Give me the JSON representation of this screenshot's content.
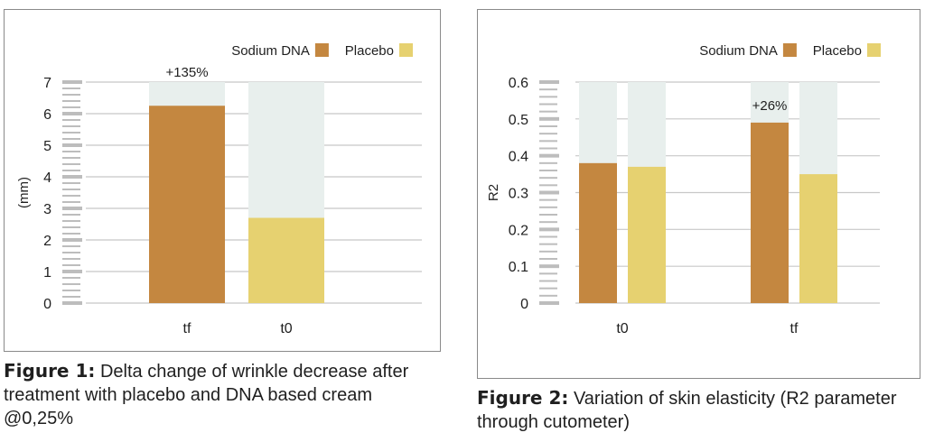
{
  "chart_data": [
    {
      "type": "bar",
      "categories": [
        "tf",
        "t0"
      ],
      "series": [
        {
          "name": "Sodium DNA",
          "values": [
            6.25,
            null
          ]
        },
        {
          "name": "Placebo",
          "values": [
            null,
            2.7
          ]
        }
      ],
      "ylabel": "(mm)",
      "ylim": [
        0,
        7
      ],
      "yticks": [
        "0",
        "1",
        "2",
        "3",
        "4",
        "5",
        "6",
        "7"
      ],
      "annotations": [
        {
          "text": "+135%",
          "category": "tf",
          "series": "Sodium DNA"
        }
      ],
      "legend": "top-right",
      "grid": true
    },
    {
      "type": "bar",
      "categories": [
        "t0",
        "tf"
      ],
      "series": [
        {
          "name": "Sodium DNA",
          "values": [
            0.38,
            0.49
          ]
        },
        {
          "name": "Placebo",
          "values": [
            0.37,
            0.35
          ]
        }
      ],
      "ylabel": "R2",
      "ylim": [
        0,
        0.6
      ],
      "yticks": [
        "0",
        "0.1",
        "0.2",
        "0.3",
        "0.4",
        "0.5",
        "0.6"
      ],
      "annotations": [
        {
          "text": "+26%",
          "category": "tf",
          "series": "Sodium DNA"
        }
      ],
      "legend": "top-right",
      "grid": true
    }
  ],
  "colors": {
    "sodium_dna": "#c48740",
    "placebo": "#e6d170",
    "bar_background": "#e8efed",
    "grid": "#c8c8c8",
    "minor_tick": "#bdbdbd"
  },
  "captions": [
    {
      "label": "Figure 1:",
      "text": " Delta change of wrinkle decrease after treatment with placebo and DNA based cream @0,25%"
    },
    {
      "label": "Figure 2:",
      "text": " Variation of skin elasticity (R2 parameter through cutometer)"
    }
  ]
}
